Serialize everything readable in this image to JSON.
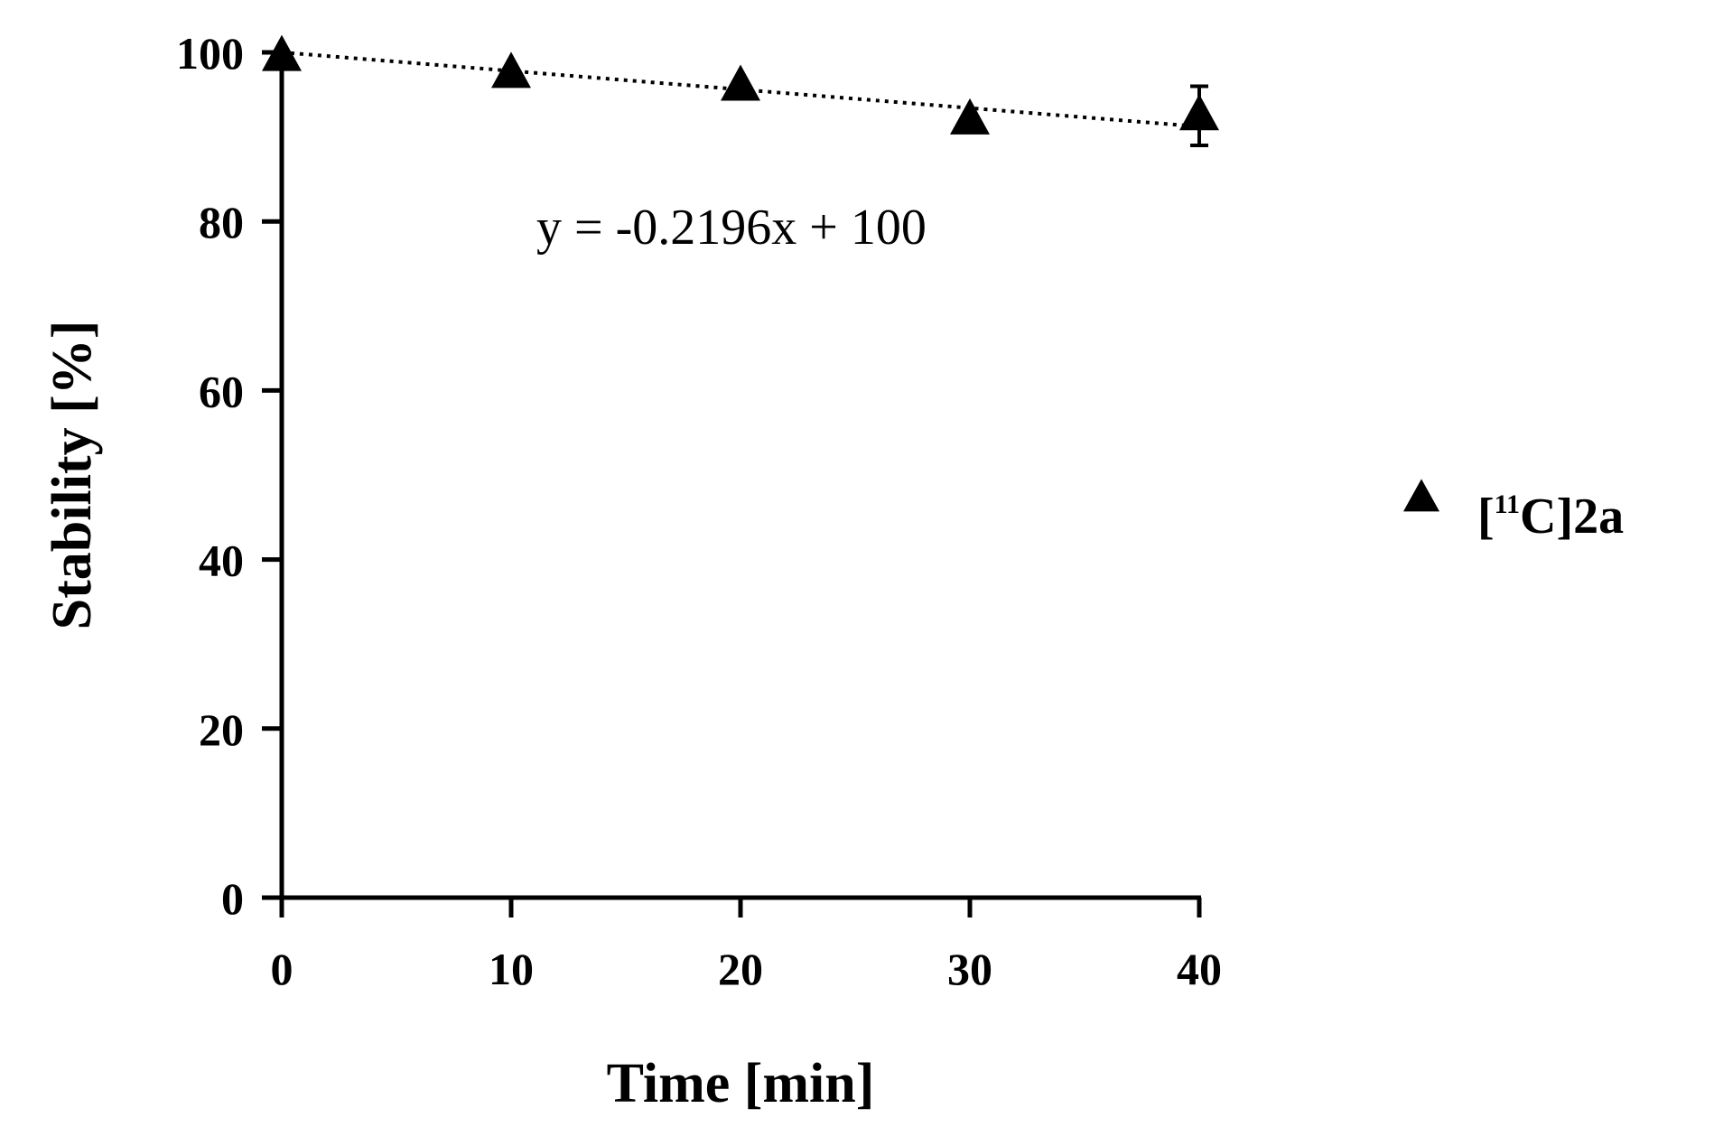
{
  "chart_data": {
    "type": "scatter",
    "xlabel": "Time [min]",
    "ylabel": "Stability [%]",
    "xlim": [
      0,
      40
    ],
    "ylim": [
      0,
      100
    ],
    "x_ticks": [
      "0",
      "10",
      "20",
      "30",
      "40"
    ],
    "y_ticks": [
      "0",
      "20",
      "40",
      "60",
      "80",
      "100"
    ],
    "grid": false,
    "legend_position": "right",
    "series": [
      {
        "name": "[11C]2a",
        "name_parts": {
          "open": "[",
          "sup": "11",
          "rest": "C]2a"
        },
        "marker": "triangle",
        "color": "#000000",
        "x": [
          0,
          10,
          20,
          30,
          40
        ],
        "y": [
          99.5,
          97.5,
          96,
          92,
          92.5
        ],
        "error": [
          0,
          0,
          0,
          0,
          3.5
        ]
      }
    ],
    "trendline": {
      "slope": -0.2196,
      "intercept": 100,
      "style": "dotted",
      "equation_label": "y = -0.2196x + 100"
    }
  }
}
